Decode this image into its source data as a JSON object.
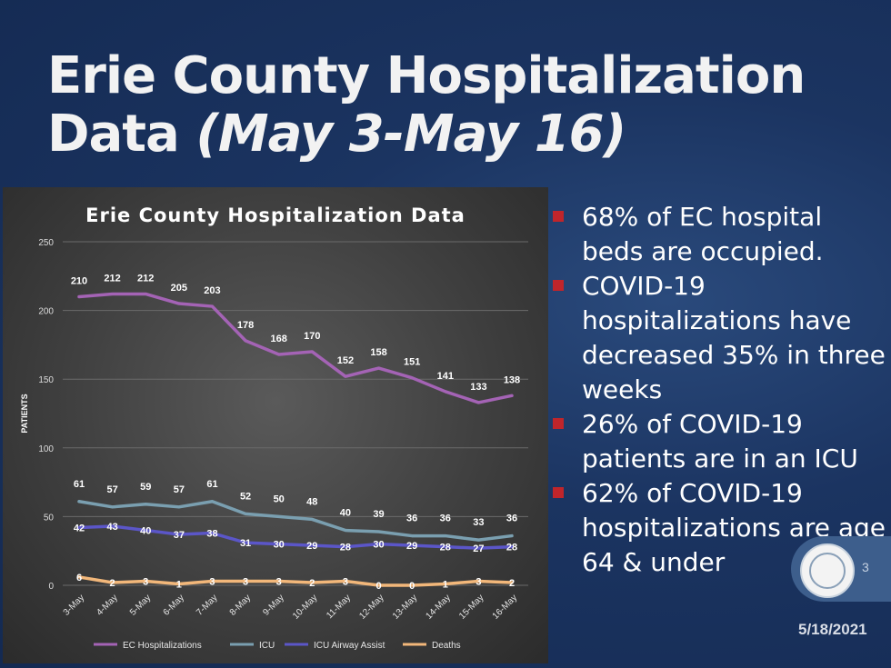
{
  "slide": {
    "title_line1": "Erie County Hospitalization",
    "title_line2_plain": "Data ",
    "title_line2_italic": "(May 3-May 16)",
    "bullets": [
      "68% of EC hospital beds are occupied.",
      "COVID-19 hospitalizations have decreased 35% in three weeks",
      "26% of COVID-19 patients are in an ICU",
      "62% of COVID-19 hospitalizations are age 64 & under"
    ],
    "page_number": "3",
    "date": "5/18/2021",
    "colors": {
      "background": "#1b3461",
      "bullet_marker": "#c0252b",
      "title": "#f2f2f2"
    }
  },
  "chart_data": {
    "type": "line",
    "title": "Erie County Hospitalization Data",
    "ylabel": "PATIENTS",
    "xlabel": "",
    "ylim": [
      0,
      250
    ],
    "yticks": [
      0,
      50,
      100,
      150,
      200,
      250
    ],
    "categories": [
      "3-May",
      "4-May",
      "5-May",
      "6-May",
      "7-May",
      "8-May",
      "9-May",
      "10-May",
      "11-May",
      "12-May",
      "13-May",
      "14-May",
      "15-May",
      "16-May"
    ],
    "series": [
      {
        "name": "EC Hospitalizations",
        "color": "#a463b5",
        "values": [
          210,
          212,
          212,
          205,
          203,
          178,
          168,
          170,
          152,
          158,
          151,
          141,
          133,
          138
        ]
      },
      {
        "name": "ICU",
        "color": "#7a9fb0",
        "values": [
          61,
          57,
          59,
          57,
          61,
          52,
          50,
          48,
          40,
          39,
          36,
          36,
          33,
          36
        ]
      },
      {
        "name": "ICU Airway Assist",
        "color": "#5b56c8",
        "values": [
          42,
          43,
          40,
          37,
          38,
          31,
          30,
          29,
          28,
          30,
          29,
          28,
          27,
          28
        ]
      },
      {
        "name": "Deaths",
        "color": "#f2b77a",
        "values": [
          6,
          2,
          3,
          1,
          3,
          3,
          3,
          2,
          3,
          0,
          0,
          1,
          3,
          2
        ]
      }
    ],
    "legend_position": "bottom",
    "grid": true
  }
}
